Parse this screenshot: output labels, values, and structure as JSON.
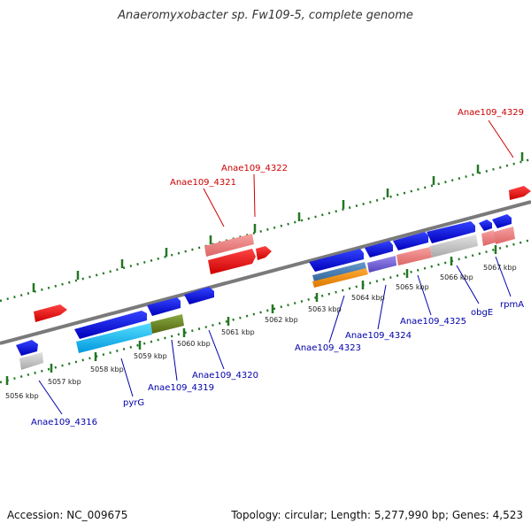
{
  "map": {
    "title": "Anaeromyxobacter sp. Fw109-5, complete genome",
    "accession": "Accession: NC_009675",
    "topology_stats": "Topology: circular; Length: 5,277,990 bp; Genes: 4,523"
  },
  "ticks": [
    {
      "label": "5056 kbp"
    },
    {
      "label": "5057 kbp"
    },
    {
      "label": "5058 kbp"
    },
    {
      "label": "5059 kbp"
    },
    {
      "label": "5060 kbp"
    },
    {
      "label": "5061 kbp"
    },
    {
      "label": "5062 kbp"
    },
    {
      "label": "5063 kbp"
    },
    {
      "label": "5064 kbp"
    },
    {
      "label": "5065 kbp"
    },
    {
      "label": "5066 kbp"
    },
    {
      "label": "5067 kbp"
    }
  ],
  "gene_labels": [
    {
      "text": "Anae109_4329",
      "color": "#cc0000"
    },
    {
      "text": "Anae109_4322",
      "color": "#cc0000"
    },
    {
      "text": "Anae109_4321",
      "color": "#cc0000"
    },
    {
      "text": "Anae109_4316",
      "color": "#0000aa"
    },
    {
      "text": "pyrG",
      "color": "#0000aa"
    },
    {
      "text": "Anae109_4319",
      "color": "#0000aa"
    },
    {
      "text": "Anae109_4320",
      "color": "#0000aa"
    },
    {
      "text": "Anae109_4323",
      "color": "#0000aa"
    },
    {
      "text": "Anae109_4324",
      "color": "#0000aa"
    },
    {
      "text": "Anae109_4325",
      "color": "#0000aa"
    },
    {
      "text": "obgE",
      "color": "#0000aa"
    },
    {
      "text": "rpmA",
      "color": "#0000aa"
    }
  ],
  "colors": {
    "cds_forward": "#ee0000",
    "cds_reverse": "#0000dd",
    "backbone": "#808080",
    "tick_marks": "#227722",
    "tick_labels": "#222222"
  }
}
